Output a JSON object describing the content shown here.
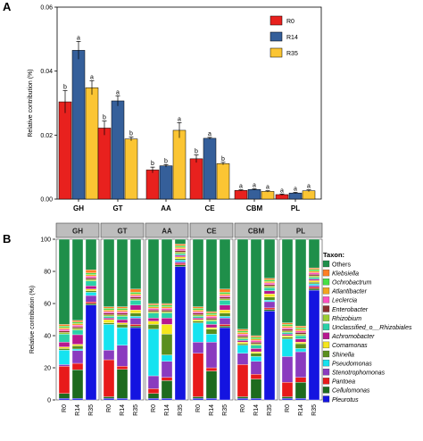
{
  "panels": {
    "a": "A",
    "b": "B"
  },
  "chart_data": [
    {
      "type": "bar",
      "ylabel": "Relative contribution (%)",
      "ylim": [
        0,
        0.06
      ],
      "yticks": [
        "0.00",
        "0.02",
        "0.04",
        "0.06"
      ],
      "ytick_values": [
        0,
        0.02,
        0.04,
        0.06
      ],
      "categories": [
        "GH",
        "GT",
        "AA",
        "CE",
        "CBM",
        "PL"
      ],
      "legend_position": "top-right",
      "series": [
        {
          "name": "R0",
          "color": "#e8211e",
          "values": [
            0.0304,
            0.0222,
            0.0091,
            0.0126,
            0.0027,
            0.0014
          ],
          "errors": [
            0.0035,
            0.0022,
            0.0009,
            0.0012,
            0.0002,
            0.0002
          ],
          "letters": [
            "b",
            "b",
            "b",
            "b",
            "a",
            "a"
          ]
        },
        {
          "name": "R14",
          "color": "#355f9a",
          "values": [
            0.0465,
            0.0307,
            0.0104,
            0.019,
            0.003,
            0.0019
          ],
          "errors": [
            0.0028,
            0.0016,
            0.0004,
            0.0003,
            0.0002,
            0.0002
          ],
          "letters": [
            "a",
            "a",
            "b",
            "a",
            "a",
            "a"
          ]
        },
        {
          "name": "R35",
          "color": "#fbc533",
          "values": [
            0.0348,
            0.0188,
            0.0215,
            0.0111,
            0.0024,
            0.0026
          ],
          "errors": [
            0.0022,
            0.0006,
            0.0024,
            0.0004,
            0.0002,
            0.0003
          ],
          "letters": [
            "a",
            "b",
            "a",
            "b",
            "a",
            "a"
          ]
        }
      ]
    },
    {
      "type": "bar",
      "stacked": true,
      "ylabel": "Relative contribution (%)",
      "ylim": [
        0,
        100
      ],
      "yticks": [
        "0",
        "20",
        "40",
        "60",
        "80",
        "100"
      ],
      "ytick_values": [
        0,
        20,
        40,
        60,
        80,
        100
      ],
      "facets": [
        "GH",
        "GT",
        "AA",
        "CE",
        "CBM",
        "PL"
      ],
      "x": [
        "R0",
        "R14",
        "R35"
      ],
      "legend_title": "Taxon:",
      "legend_position": "right",
      "taxa": [
        {
          "name": "Pleurotus",
          "color": "#1414e0"
        },
        {
          "name": "Cellulomonas",
          "color": "#1e6b1e"
        },
        {
          "name": "Pantoea",
          "color": "#e81a1a"
        },
        {
          "name": "Stenotrophomonas",
          "color": "#8a3bbf"
        },
        {
          "name": "Pseudomonas",
          "color": "#15e3f0"
        },
        {
          "name": "Shinella",
          "color": "#5a8f1e"
        },
        {
          "name": "Comamonas",
          "color": "#f5e61c"
        },
        {
          "name": "Achromobacter",
          "color": "#b7178f"
        },
        {
          "name": "Unclassified_o__Rhizobiales",
          "color": "#2ad1a8"
        },
        {
          "name": "Rhizobium",
          "color": "#9acd32"
        },
        {
          "name": "Enterobacter",
          "color": "#8b2e2e"
        },
        {
          "name": "Leclercia",
          "color": "#ff4fc0"
        },
        {
          "name": "Atlantibacter",
          "color": "#f2a61e"
        },
        {
          "name": "Ochrobactrum",
          "color": "#46e046"
        },
        {
          "name": "Klebsiella",
          "color": "#ff7f24"
        },
        {
          "name": "Others",
          "color": "#1f8f4a"
        }
      ],
      "legend_order": [
        "Others",
        "Klebsiella",
        "Ochrobactrum",
        "Atlantibacter",
        "Leclercia",
        "Enterobacter",
        "Rhizobium",
        "Unclassified_o__Rhizobiales",
        "Achromobacter",
        "Comamonas",
        "Shinella",
        "Pseudomonas",
        "Stenotrophomonas",
        "Pantoea",
        "Cellulomonas",
        "Pleurotus"
      ],
      "legend_italic": [
        false,
        true,
        true,
        true,
        true,
        true,
        true,
        true,
        true,
        true,
        true,
        true,
        true,
        true,
        true,
        true
      ],
      "stacks": {
        "GH": {
          "R0": [
            1,
            3,
            17,
            1,
            9,
            1,
            1,
            3,
            5,
            1,
            1,
            1,
            1,
            1,
            1,
            53
          ],
          "R14": [
            1,
            18,
            4,
            8,
            1,
            2,
            1,
            6,
            3,
            1,
            1,
            1,
            1,
            1,
            1,
            51
          ],
          "R35": [
            59,
            1,
            1,
            4,
            2,
            1,
            1,
            2,
            3,
            1,
            1,
            1,
            1,
            1,
            2,
            19
          ]
        },
        "GT": {
          "R0": [
            1,
            1,
            23,
            6,
            16,
            1,
            2,
            1,
            1,
            1,
            1,
            1,
            1,
            1,
            1,
            42
          ],
          "R14": [
            1,
            18,
            2,
            13,
            11,
            2,
            1,
            2,
            2,
            1,
            1,
            1,
            1,
            1,
            1,
            42
          ],
          "R35": [
            45,
            1,
            1,
            4,
            1,
            2,
            2,
            3,
            3,
            1,
            1,
            1,
            1,
            1,
            2,
            31
          ]
        },
        "AA": {
          "R0": [
            1,
            3,
            3,
            8,
            29,
            3,
            2,
            2,
            3,
            1,
            1,
            1,
            1,
            1,
            1,
            40
          ],
          "R14": [
            1,
            11,
            2,
            10,
            4,
            13,
            6,
            4,
            3,
            1,
            1,
            1,
            1,
            1,
            1,
            40
          ],
          "R35": [
            83,
            1,
            1,
            1,
            1,
            1,
            1,
            1,
            1,
            1,
            1,
            1,
            1,
            1,
            1,
            3
          ]
        },
        "CE": {
          "R0": [
            1,
            1,
            27,
            7,
            12,
            1,
            1,
            1,
            1,
            1,
            1,
            1,
            1,
            1,
            1,
            42
          ],
          "R14": [
            1,
            17,
            2,
            16,
            5,
            3,
            1,
            2,
            2,
            1,
            1,
            1,
            1,
            1,
            1,
            45
          ],
          "R35": [
            45,
            1,
            1,
            4,
            1,
            2,
            2,
            3,
            3,
            1,
            1,
            1,
            1,
            1,
            2,
            31
          ]
        },
        "CBM": {
          "R0": [
            1,
            1,
            20,
            7,
            5,
            1,
            1,
            1,
            1,
            1,
            1,
            1,
            1,
            1,
            1,
            56
          ],
          "R14": [
            1,
            12,
            3,
            8,
            3,
            2,
            1,
            2,
            2,
            1,
            1,
            1,
            1,
            1,
            1,
            60
          ],
          "R35": [
            57,
            1,
            1,
            4,
            1,
            2,
            2,
            2,
            2,
            1,
            1,
            1,
            1,
            1,
            1,
            25
          ]
        },
        "PL": {
          "R0": [
            1,
            1,
            9,
            16,
            11,
            1,
            1,
            1,
            1,
            1,
            1,
            1,
            1,
            1,
            1,
            52
          ],
          "R14": [
            1,
            10,
            3,
            16,
            2,
            3,
            1,
            2,
            2,
            1,
            1,
            1,
            1,
            1,
            1,
            54
          ],
          "R35": [
            69,
            1,
            1,
            1,
            1,
            1,
            1,
            1,
            1,
            1,
            1,
            1,
            1,
            1,
            1,
            18
          ]
        }
      }
    }
  ]
}
